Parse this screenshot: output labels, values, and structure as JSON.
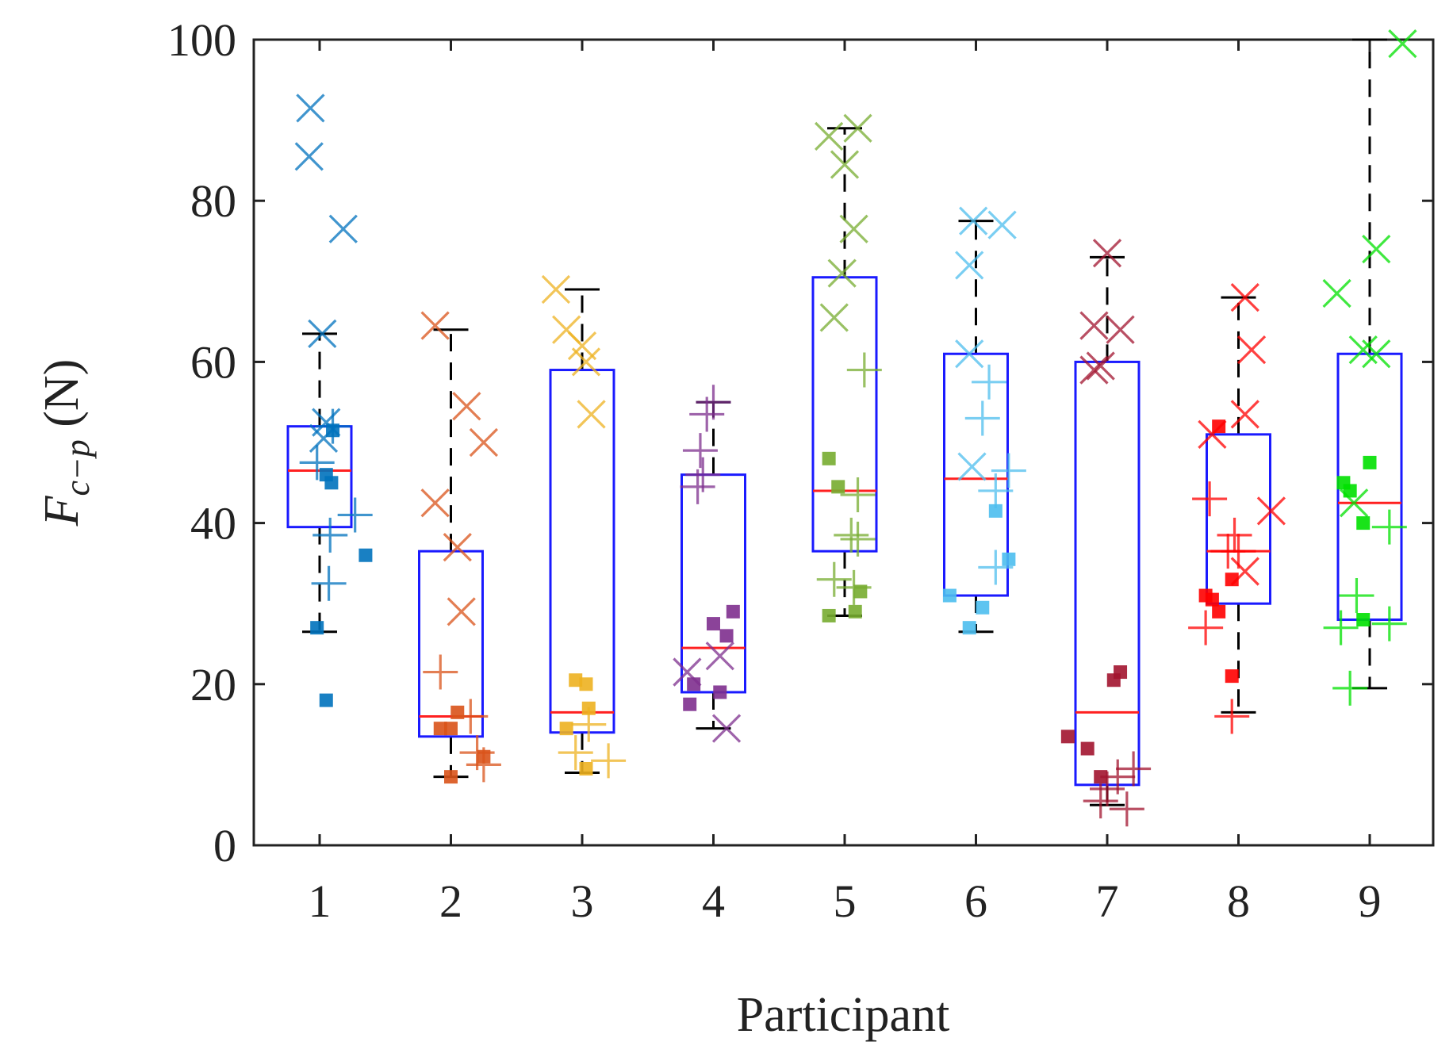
{
  "chart_data": {
    "type": "box",
    "xlabel": "Participant",
    "ylabel": {
      "main": "F",
      "sub": "c−p",
      "unit": " (N)"
    },
    "categories": [
      "1",
      "2",
      "3",
      "4",
      "5",
      "6",
      "7",
      "8",
      "9"
    ],
    "ylim": [
      0,
      100
    ],
    "yticks": [
      "0",
      "20",
      "40",
      "60",
      "80",
      "100"
    ],
    "grid": false,
    "legend": "none",
    "colors": {
      "box": "#1a1aff",
      "median": "#ff2020",
      "whisker": "#000000",
      "axis": "#222222"
    },
    "boxes": [
      {
        "participant": "1",
        "q1": 39.5,
        "median": 46.5,
        "q3": 52,
        "whisker_low": 26.5,
        "whisker_high": 63.5,
        "color": "#0072bd",
        "points": [
          {
            "m": "x",
            "x": -0.07,
            "y": 91.5
          },
          {
            "m": "x",
            "x": -0.08,
            "y": 85.5
          },
          {
            "m": "x",
            "x": 0.18,
            "y": 76.5
          },
          {
            "m": "x",
            "x": 0.02,
            "y": 63.5
          },
          {
            "m": "x",
            "x": 0.05,
            "y": 52.5
          },
          {
            "m": "x",
            "x": 0.03,
            "y": 50.5
          },
          {
            "m": "+",
            "x": 0.1,
            "y": 52
          },
          {
            "m": "+",
            "x": -0.02,
            "y": 47.5
          },
          {
            "m": "+",
            "x": 0.27,
            "y": 41
          },
          {
            "m": "+",
            "x": 0.08,
            "y": 38.5
          },
          {
            "m": "+",
            "x": 0.07,
            "y": 32.5
          },
          {
            "m": "s",
            "x": 0.05,
            "y": 46
          },
          {
            "m": "s",
            "x": 0.09,
            "y": 45
          },
          {
            "m": "s",
            "x": 0.1,
            "y": 51.5
          },
          {
            "m": "s",
            "x": 0.35,
            "y": 36
          },
          {
            "m": "s",
            "x": -0.02,
            "y": 27
          },
          {
            "m": "s",
            "x": 0.05,
            "y": 18
          }
        ]
      },
      {
        "participant": "2",
        "q1": 13.5,
        "median": 16,
        "q3": 36.5,
        "whisker_low": 8.5,
        "whisker_high": 64,
        "color": "#d95319",
        "points": [
          {
            "m": "x",
            "x": -0.12,
            "y": 64.5
          },
          {
            "m": "x",
            "x": 0.12,
            "y": 54.5
          },
          {
            "m": "x",
            "x": 0.25,
            "y": 50
          },
          {
            "m": "x",
            "x": -0.12,
            "y": 42.5
          },
          {
            "m": "x",
            "x": 0.05,
            "y": 37
          },
          {
            "m": "x",
            "x": 0.08,
            "y": 29
          },
          {
            "m": "+",
            "x": -0.08,
            "y": 21.5
          },
          {
            "m": "+",
            "x": 0.15,
            "y": 16
          },
          {
            "m": "+",
            "x": 0.2,
            "y": 11.5
          },
          {
            "m": "+",
            "x": 0.25,
            "y": 10
          },
          {
            "m": "s",
            "x": 0.05,
            "y": 16.5
          },
          {
            "m": "s",
            "x": -0.08,
            "y": 14.5
          },
          {
            "m": "s",
            "x": 0.0,
            "y": 14.5
          },
          {
            "m": "s",
            "x": 0.25,
            "y": 11
          },
          {
            "m": "s",
            "x": 0.0,
            "y": 8.5
          }
        ]
      },
      {
        "participant": "3",
        "q1": 14,
        "median": 16.5,
        "q3": 59,
        "whisker_low": 9,
        "whisker_high": 69,
        "color": "#edb120",
        "points": [
          {
            "m": "x",
            "x": -0.2,
            "y": 69
          },
          {
            "m": "x",
            "x": -0.12,
            "y": 64
          },
          {
            "m": "x",
            "x": 0.0,
            "y": 62
          },
          {
            "m": "x",
            "x": 0.03,
            "y": 60
          },
          {
            "m": "x",
            "x": 0.07,
            "y": 53.5
          },
          {
            "m": "+",
            "x": 0.05,
            "y": 15
          },
          {
            "m": "+",
            "x": -0.05,
            "y": 11.5
          },
          {
            "m": "+",
            "x": 0.2,
            "y": 10.5
          },
          {
            "m": "s",
            "x": -0.05,
            "y": 20.5
          },
          {
            "m": "s",
            "x": 0.03,
            "y": 20
          },
          {
            "m": "s",
            "x": 0.05,
            "y": 17
          },
          {
            "m": "s",
            "x": -0.12,
            "y": 14.5
          },
          {
            "m": "s",
            "x": 0.03,
            "y": 9.5
          }
        ]
      },
      {
        "participant": "4",
        "q1": 19,
        "median": 24.5,
        "q3": 46,
        "whisker_low": 14.5,
        "whisker_high": 55,
        "color": "#7e2f8e",
        "points": [
          {
            "m": "+",
            "x": 0.0,
            "y": 55
          },
          {
            "m": "+",
            "x": -0.05,
            "y": 53.5
          },
          {
            "m": "+",
            "x": -0.1,
            "y": 49
          },
          {
            "m": "+",
            "x": -0.08,
            "y": 46
          },
          {
            "m": "+",
            "x": -0.12,
            "y": 44.5
          },
          {
            "m": "x",
            "x": -0.2,
            "y": 21.5
          },
          {
            "m": "x",
            "x": 0.05,
            "y": 23.5
          },
          {
            "m": "x",
            "x": 0.1,
            "y": 14.5
          },
          {
            "m": "s",
            "x": 0.15,
            "y": 29
          },
          {
            "m": "s",
            "x": 0.0,
            "y": 27.5
          },
          {
            "m": "s",
            "x": 0.1,
            "y": 26
          },
          {
            "m": "s",
            "x": -0.15,
            "y": 20
          },
          {
            "m": "s",
            "x": 0.05,
            "y": 19
          },
          {
            "m": "s",
            "x": -0.18,
            "y": 17.5
          }
        ]
      },
      {
        "participant": "5",
        "q1": 36.5,
        "median": 44,
        "q3": 70.5,
        "whisker_low": 28.5,
        "whisker_high": 89,
        "color": "#77ac30",
        "points": [
          {
            "m": "x",
            "x": -0.12,
            "y": 88
          },
          {
            "m": "x",
            "x": 0.1,
            "y": 89
          },
          {
            "m": "x",
            "x": 0.0,
            "y": 84.5
          },
          {
            "m": "x",
            "x": 0.07,
            "y": 76.5
          },
          {
            "m": "x",
            "x": -0.02,
            "y": 71
          },
          {
            "m": "x",
            "x": -0.08,
            "y": 65.5
          },
          {
            "m": "+",
            "x": 0.15,
            "y": 59
          },
          {
            "m": "+",
            "x": 0.1,
            "y": 43.5
          },
          {
            "m": "+",
            "x": 0.05,
            "y": 38.5
          },
          {
            "m": "+",
            "x": 0.1,
            "y": 38
          },
          {
            "m": "+",
            "x": -0.08,
            "y": 33
          },
          {
            "m": "+",
            "x": 0.07,
            "y": 32
          },
          {
            "m": "s",
            "x": -0.12,
            "y": 48
          },
          {
            "m": "s",
            "x": -0.05,
            "y": 44.5
          },
          {
            "m": "s",
            "x": 0.12,
            "y": 31.5
          },
          {
            "m": "s",
            "x": 0.08,
            "y": 29
          },
          {
            "m": "s",
            "x": -0.12,
            "y": 28.5
          }
        ]
      },
      {
        "participant": "6",
        "q1": 31,
        "median": 45.5,
        "q3": 61,
        "whisker_low": 26.5,
        "whisker_high": 77.5,
        "color": "#4dbeee",
        "points": [
          {
            "m": "x",
            "x": -0.02,
            "y": 77.5
          },
          {
            "m": "x",
            "x": 0.2,
            "y": 77
          },
          {
            "m": "x",
            "x": -0.05,
            "y": 72
          },
          {
            "m": "x",
            "x": -0.05,
            "y": 61
          },
          {
            "m": "x",
            "x": -0.03,
            "y": 47
          },
          {
            "m": "+",
            "x": 0.1,
            "y": 57.5
          },
          {
            "m": "+",
            "x": 0.05,
            "y": 53
          },
          {
            "m": "+",
            "x": 0.25,
            "y": 46.5
          },
          {
            "m": "+",
            "x": 0.15,
            "y": 44
          },
          {
            "m": "+",
            "x": 0.15,
            "y": 34.5
          },
          {
            "m": "s",
            "x": 0.15,
            "y": 41.5
          },
          {
            "m": "s",
            "x": 0.25,
            "y": 35.5
          },
          {
            "m": "s",
            "x": -0.2,
            "y": 31
          },
          {
            "m": "s",
            "x": 0.05,
            "y": 29.5
          },
          {
            "m": "s",
            "x": -0.05,
            "y": 27
          }
        ]
      },
      {
        "participant": "7",
        "q1": 7.5,
        "median": 16.5,
        "q3": 60,
        "whisker_low": 5,
        "whisker_high": 73,
        "color": "#a2142f",
        "points": [
          {
            "m": "x",
            "x": 0.0,
            "y": 73.5
          },
          {
            "m": "x",
            "x": -0.1,
            "y": 64.5
          },
          {
            "m": "x",
            "x": 0.1,
            "y": 64
          },
          {
            "m": "x",
            "x": -0.05,
            "y": 59.5
          },
          {
            "m": "x",
            "x": -0.1,
            "y": 59
          },
          {
            "m": "+",
            "x": 0.2,
            "y": 9.5
          },
          {
            "m": "+",
            "x": 0.08,
            "y": 8.5
          },
          {
            "m": "+",
            "x": 0.0,
            "y": 7
          },
          {
            "m": "+",
            "x": -0.05,
            "y": 5.5
          },
          {
            "m": "+",
            "x": 0.15,
            "y": 4.5
          },
          {
            "m": "s",
            "x": 0.1,
            "y": 21.5
          },
          {
            "m": "s",
            "x": 0.05,
            "y": 20.5
          },
          {
            "m": "s",
            "x": -0.3,
            "y": 13.5
          },
          {
            "m": "s",
            "x": -0.15,
            "y": 12
          },
          {
            "m": "s",
            "x": -0.05,
            "y": 8.5
          }
        ]
      },
      {
        "participant": "8",
        "q1": 30,
        "median": 36.5,
        "q3": 51,
        "whisker_low": 16.5,
        "whisker_high": 68,
        "color": "#ff0000",
        "points": [
          {
            "m": "x",
            "x": 0.05,
            "y": 68
          },
          {
            "m": "x",
            "x": 0.1,
            "y": 61.5
          },
          {
            "m": "x",
            "x": 0.05,
            "y": 53.5
          },
          {
            "m": "x",
            "x": -0.2,
            "y": 51
          },
          {
            "m": "x",
            "x": 0.25,
            "y": 41.5
          },
          {
            "m": "x",
            "x": 0.05,
            "y": 34
          },
          {
            "m": "+",
            "x": -0.22,
            "y": 43
          },
          {
            "m": "+",
            "x": -0.03,
            "y": 38.5
          },
          {
            "m": "+",
            "x": 0.0,
            "y": 36.5
          },
          {
            "m": "+",
            "x": -0.08,
            "y": 36.5
          },
          {
            "m": "+",
            "x": -0.25,
            "y": 27
          },
          {
            "m": "+",
            "x": -0.05,
            "y": 16
          },
          {
            "m": "s",
            "x": -0.15,
            "y": 52
          },
          {
            "m": "s",
            "x": -0.05,
            "y": 33
          },
          {
            "m": "s",
            "x": -0.25,
            "y": 31
          },
          {
            "m": "s",
            "x": -0.2,
            "y": 30.5
          },
          {
            "m": "s",
            "x": -0.15,
            "y": 29
          },
          {
            "m": "s",
            "x": -0.05,
            "y": 21
          }
        ]
      },
      {
        "participant": "9",
        "q1": 28,
        "median": 42.5,
        "q3": 61,
        "whisker_low": 19.5,
        "whisker_high": 100,
        "color": "#00e000",
        "points": [
          {
            "m": "x",
            "x": 0.25,
            "y": 99.5
          },
          {
            "m": "x",
            "x": 0.05,
            "y": 74
          },
          {
            "m": "x",
            "x": -0.25,
            "y": 68.5
          },
          {
            "m": "x",
            "x": -0.05,
            "y": 61.5
          },
          {
            "m": "x",
            "x": -0.12,
            "y": 42.5
          },
          {
            "m": "x",
            "x": 0.05,
            "y": 61
          },
          {
            "m": "+",
            "x": 0.15,
            "y": 39.5
          },
          {
            "m": "+",
            "x": -0.1,
            "y": 31
          },
          {
            "m": "+",
            "x": -0.22,
            "y": 27
          },
          {
            "m": "+",
            "x": 0.15,
            "y": 27.5
          },
          {
            "m": "+",
            "x": -0.15,
            "y": 19.5
          },
          {
            "m": "s",
            "x": -0.2,
            "y": 45
          },
          {
            "m": "s",
            "x": -0.15,
            "y": 44
          },
          {
            "m": "s",
            "x": 0.0,
            "y": 47.5
          },
          {
            "m": "s",
            "x": -0.05,
            "y": 40
          },
          {
            "m": "s",
            "x": -0.05,
            "y": 28
          }
        ]
      }
    ]
  }
}
